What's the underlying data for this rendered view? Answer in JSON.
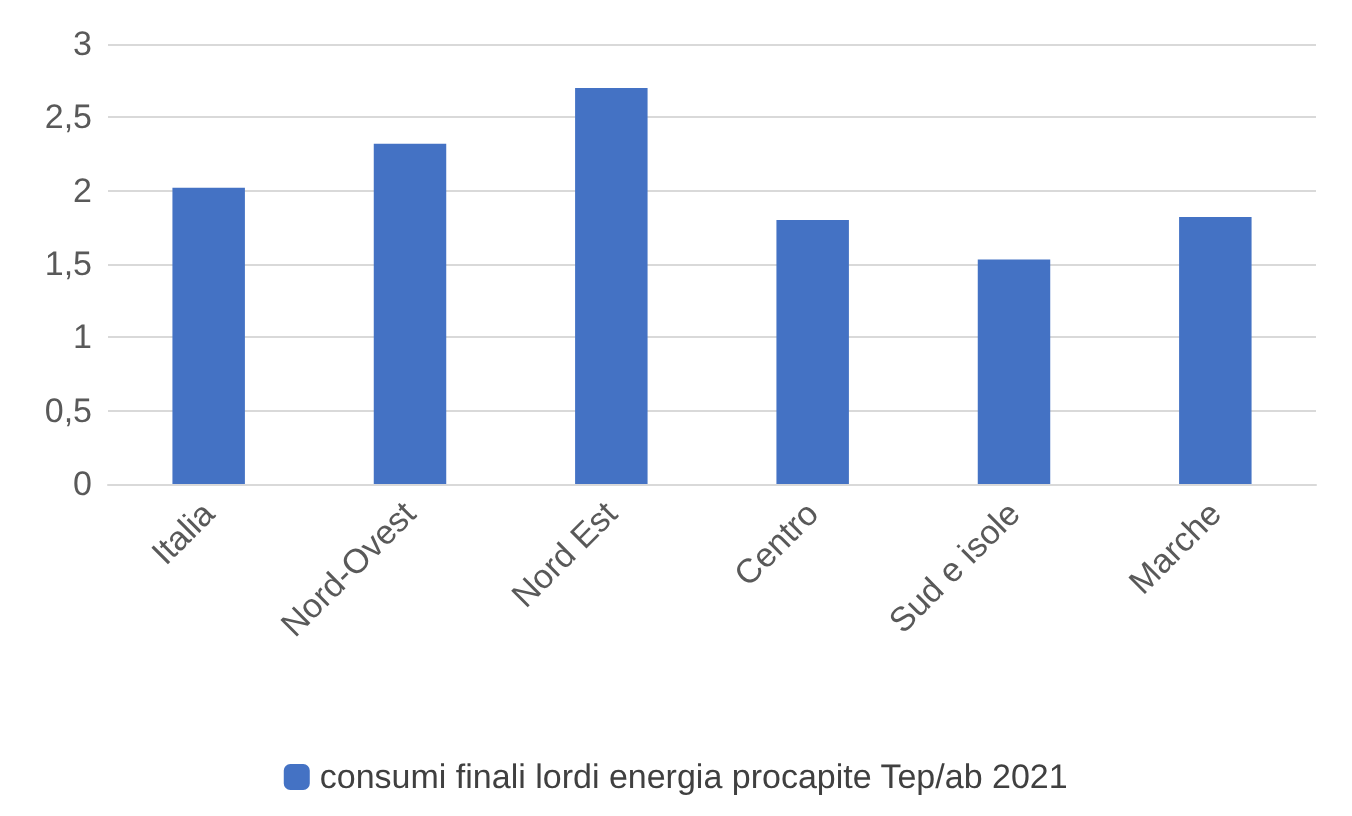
{
  "chart_data": {
    "type": "bar",
    "categories": [
      "Italia",
      "Nord-Ovest",
      "Nord Est",
      "Centro",
      "Sud e isole",
      "Marche"
    ],
    "series": [
      {
        "name": "consumi finali lordi energia procapite Tep/ab 2021",
        "color": "#4472c4",
        "values": [
          2.02,
          2.32,
          2.7,
          1.8,
          1.53,
          1.82
        ]
      }
    ],
    "ylim": [
      0,
      3
    ],
    "yticks": [
      0,
      {
        "value": 0.5,
        "label": "0,5"
      },
      1,
      {
        "value": 1.5,
        "label": "1,5"
      },
      2,
      {
        "value": 2.5,
        "label": "2,5"
      },
      3
    ],
    "grid": "y",
    "legend": "bottom"
  }
}
